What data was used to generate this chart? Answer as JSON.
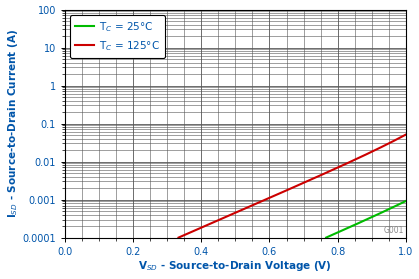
{
  "xlabel": "V$_{SD}$ - Source-to-Drain Voltage (V)",
  "ylabel": "I$_{SD}$ - Source-to-Drain Current (A)",
  "xlim": [
    0,
    1.0
  ],
  "ylim_log": [
    0.0001,
    100
  ],
  "xticks": [
    0,
    0.2,
    0.4,
    0.6,
    0.8,
    1.0
  ],
  "legend": [
    {
      "label": "T$_C$ = 25°C",
      "color": "#00bb00"
    },
    {
      "label": "T$_C$ = 125°C",
      "color": "#cc0000"
    }
  ],
  "curve_25C_params": {
    "Is1": 1e-12,
    "n1": 18.5,
    "Is2": 1e-07,
    "n2": 9.0
  },
  "curve_125C_params": {
    "Is1": 1e-10,
    "n1": 18.5,
    "Is2": 5e-06,
    "n2": 9.0
  },
  "watermark": "G001",
  "background_color": "#ffffff",
  "axis_label_color": "#0055aa",
  "tick_label_color": "#0055aa",
  "grid_major_color": "#555555",
  "grid_minor_color": "#aaaaaa",
  "grid_major_lw": 0.6,
  "grid_minor_lw": 0.4,
  "line_width": 1.5
}
